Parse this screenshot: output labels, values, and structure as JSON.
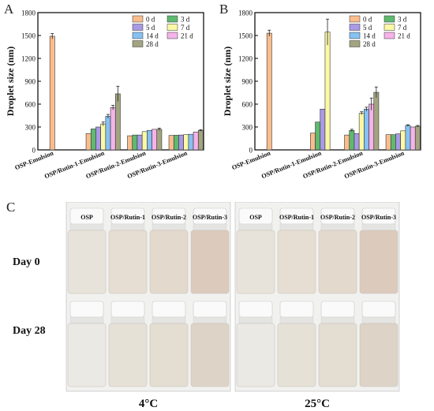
{
  "figure": {
    "panel_a": "A",
    "panel_b": "B",
    "panel_c": "C"
  },
  "legend_labels": [
    "0 d",
    "3 d",
    "5 d",
    "7 d",
    "14 d",
    "21 d",
    "28 d"
  ],
  "series_colors": [
    "#f9bd8d",
    "#5fb96f",
    "#a99ae6",
    "#fbf8a6",
    "#86c1f1",
    "#f5b3ea",
    "#a3a480"
  ],
  "chart_data": [
    {
      "type": "bar",
      "panel": "A",
      "ylabel": "Droplet size (nm)",
      "ylim": [
        0,
        1800
      ],
      "yticks": [
        0,
        300,
        600,
        900,
        1200,
        1500,
        1800
      ],
      "categories": [
        "OSP-Emulsion",
        "OSP/Rutin-1-Emulsion",
        "OSP/Rutin-2-Emulsion",
        "OSP/Rutin-3-Emulsion"
      ],
      "legend_order": [
        0,
        1,
        2,
        3,
        4,
        5,
        6
      ],
      "series": [
        {
          "name": "0 d",
          "values": [
            1490,
            215,
            185,
            190
          ],
          "errors": [
            35,
            0,
            0,
            0
          ]
        },
        {
          "name": "3 d",
          "values": [
            null,
            275,
            195,
            192
          ],
          "errors": [
            0,
            0,
            0,
            0
          ]
        },
        {
          "name": "5 d",
          "values": [
            null,
            300,
            195,
            195
          ],
          "errors": [
            0,
            0,
            0,
            0
          ]
        },
        {
          "name": "7 d",
          "values": [
            null,
            340,
            240,
            200
          ],
          "errors": [
            0,
            25,
            0,
            0
          ]
        },
        {
          "name": "14 d",
          "values": [
            null,
            440,
            255,
            205
          ],
          "errors": [
            0,
            25,
            0,
            0
          ]
        },
        {
          "name": "21 d",
          "values": [
            null,
            555,
            270,
            235
          ],
          "errors": [
            0,
            30,
            0,
            0
          ]
        },
        {
          "name": "28 d",
          "values": [
            null,
            735,
            270,
            255
          ],
          "errors": [
            0,
            100,
            15,
            10
          ]
        }
      ]
    },
    {
      "type": "bar",
      "panel": "B",
      "ylabel": "Droplet size (nm)",
      "ylim": [
        0,
        1800
      ],
      "yticks": [
        0,
        300,
        600,
        900,
        1200,
        1500,
        1800
      ],
      "categories": [
        "OSP-Emulsion",
        "OSP/Rutin-1-Emulsion",
        "OSP/Rutin-2-Emulsion",
        "OSP/Rutin-3-Emulsion"
      ],
      "legend_order": [
        0,
        1,
        2,
        3,
        4,
        5,
        6
      ],
      "series": [
        {
          "name": "0 d",
          "values": [
            1530,
            220,
            195,
            200
          ],
          "errors": [
            40,
            0,
            0,
            0
          ]
        },
        {
          "name": "3 d",
          "values": [
            null,
            365,
            255,
            200
          ],
          "errors": [
            0,
            0,
            15,
            0
          ]
        },
        {
          "name": "5 d",
          "values": [
            null,
            535,
            215,
            210
          ],
          "errors": [
            0,
            0,
            0,
            0
          ]
        },
        {
          "name": "7 d",
          "values": [
            null,
            1545,
            480,
            250
          ],
          "errors": [
            0,
            170,
            20,
            0
          ]
        },
        {
          "name": "14 d",
          "values": [
            null,
            null,
            535,
            320
          ],
          "errors": [
            0,
            0,
            25,
            10
          ]
        },
        {
          "name": "21 d",
          "values": [
            null,
            null,
            600,
            300
          ],
          "errors": [
            0,
            0,
            80,
            0
          ]
        },
        {
          "name": "28 d",
          "values": [
            null,
            null,
            755,
            310
          ],
          "errors": [
            0,
            0,
            70,
            10
          ]
        }
      ]
    }
  ],
  "photos": {
    "sample_labels": [
      "OSP",
      "OSP/Rutin-1",
      "OSP/Rutin-2",
      "OSP/Rutin-3"
    ],
    "sample_labels_25": [
      "OSP",
      "OSP/Rutin-1",
      "OSP/Rutin-2",
      "OSP/Rutin-3"
    ],
    "row_labels": [
      "Day 0",
      "Day 28"
    ],
    "temperatures": [
      "4°C",
      "25°C"
    ]
  }
}
